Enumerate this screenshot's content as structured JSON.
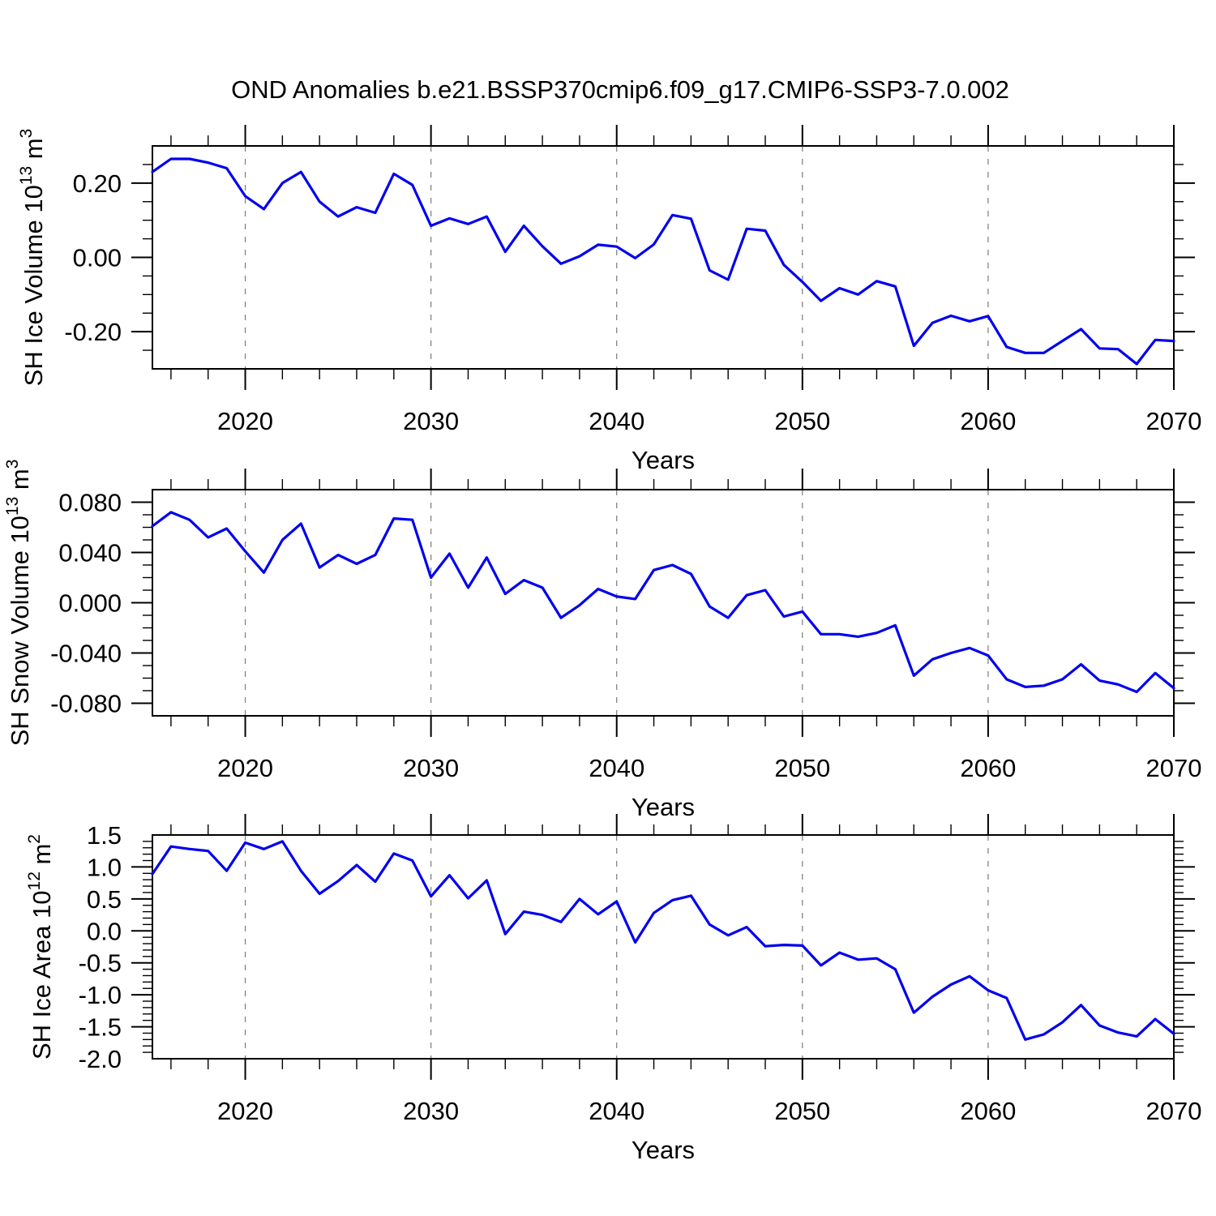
{
  "title": "OND Anomalies b.e21.BSSP370cmip6.f09_g17.CMIP6-SSP3-7.0.002",
  "colors": {
    "line": "#0000ee",
    "grid": "#7a7a7a",
    "axis": "#000000",
    "text": "#000000"
  },
  "chart_data": [
    {
      "type": "line",
      "ylabel": "SH Ice Volume 10^13 m^3",
      "xlabel": "Years",
      "xlim": [
        2015,
        2070
      ],
      "ylim": [
        -0.3,
        0.3
      ],
      "x_major_ticks": [
        2020,
        2030,
        2040,
        2050,
        2060,
        2070
      ],
      "x_major_tick_labels": [
        "2020",
        "2030",
        "2040",
        "2050",
        "2060",
        "2070"
      ],
      "x_minor_step": 2,
      "y_major_tick_labels": [
        "0.20",
        "0.00",
        "-0.20"
      ],
      "y_minor_step": 0.05,
      "grid_x": [
        2020,
        2030,
        2040,
        2050,
        2060
      ],
      "x": [
        2015,
        2016,
        2017,
        2018,
        2019,
        2020,
        2021,
        2022,
        2023,
        2024,
        2025,
        2026,
        2027,
        2028,
        2029,
        2030,
        2031,
        2032,
        2033,
        2034,
        2035,
        2036,
        2037,
        2038,
        2039,
        2040,
        2041,
        2042,
        2043,
        2044,
        2045,
        2046,
        2047,
        2048,
        2049,
        2050,
        2051,
        2052,
        2053,
        2054,
        2055,
        2056,
        2057,
        2058,
        2059,
        2060,
        2061,
        2062,
        2063,
        2064,
        2065,
        2066,
        2067,
        2068,
        2069,
        2070
      ],
      "y": [
        0.23,
        0.265,
        0.265,
        0.255,
        0.24,
        0.165,
        0.13,
        0.2,
        0.23,
        0.15,
        0.11,
        0.135,
        0.12,
        0.225,
        0.195,
        0.085,
        0.105,
        0.09,
        0.11,
        0.015,
        0.085,
        0.03,
        -0.017,
        0.003,
        0.034,
        0.029,
        -0.002,
        0.035,
        0.114,
        0.104,
        -0.035,
        -0.06,
        0.077,
        0.072,
        -0.02,
        -0.066,
        -0.117,
        -0.083,
        -0.1,
        -0.064,
        -0.078,
        -0.238,
        -0.176,
        -0.157,
        -0.172,
        -0.158,
        -0.241,
        -0.257,
        -0.257,
        -0.225,
        -0.193,
        -0.245,
        -0.247,
        -0.287,
        -0.222,
        -0.225
      ]
    },
    {
      "type": "line",
      "ylabel": "SH Snow Volume 10^13 m^3",
      "xlabel": "Years",
      "xlim": [
        2015,
        2070
      ],
      "ylim": [
        -0.09,
        0.09
      ],
      "x_major_ticks": [
        2020,
        2030,
        2040,
        2050,
        2060,
        2070
      ],
      "x_major_tick_labels": [
        "2020",
        "2030",
        "2040",
        "2050",
        "2060",
        "2070"
      ],
      "x_minor_step": 2,
      "y_major_tick_labels": [
        "0.080",
        "0.040",
        "0.000",
        "-0.040",
        "-0.080"
      ],
      "y_minor_step": 0.01,
      "grid_x": [
        2020,
        2030,
        2040,
        2050,
        2060
      ],
      "x": [
        2015,
        2016,
        2017,
        2018,
        2019,
        2020,
        2021,
        2022,
        2023,
        2024,
        2025,
        2026,
        2027,
        2028,
        2029,
        2030,
        2031,
        2032,
        2033,
        2034,
        2035,
        2036,
        2037,
        2038,
        2039,
        2040,
        2041,
        2042,
        2043,
        2044,
        2045,
        2046,
        2047,
        2048,
        2049,
        2050,
        2051,
        2052,
        2053,
        2054,
        2055,
        2056,
        2057,
        2058,
        2059,
        2060,
        2061,
        2062,
        2063,
        2064,
        2065,
        2066,
        2067,
        2068,
        2069,
        2070
      ],
      "y": [
        0.061,
        0.072,
        0.066,
        0.052,
        0.059,
        0.041,
        0.024,
        0.05,
        0.063,
        0.028,
        0.038,
        0.031,
        0.038,
        0.067,
        0.066,
        0.02,
        0.039,
        0.012,
        0.036,
        0.007,
        0.018,
        0.012,
        -0.012,
        -0.002,
        0.011,
        0.005,
        0.003,
        0.026,
        0.03,
        0.023,
        -0.003,
        -0.012,
        0.006,
        0.01,
        -0.011,
        -0.007,
        -0.025,
        -0.025,
        -0.027,
        -0.024,
        -0.018,
        -0.058,
        -0.045,
        -0.04,
        -0.036,
        -0.042,
        -0.061,
        -0.067,
        -0.066,
        -0.061,
        -0.049,
        -0.062,
        -0.065,
        -0.071,
        -0.056,
        -0.068
      ]
    },
    {
      "type": "line",
      "ylabel": "SH Ice Area 10^12 m^2",
      "xlabel": "Years",
      "xlim": [
        2015,
        2070
      ],
      "ylim": [
        -2.0,
        1.5
      ],
      "x_major_ticks": [
        2020,
        2030,
        2040,
        2050,
        2060,
        2070
      ],
      "x_major_tick_labels": [
        "2020",
        "2030",
        "2040",
        "2050",
        "2060",
        "2070"
      ],
      "x_minor_step": 2,
      "y_major_tick_labels": [
        "1.5",
        "1.0",
        "0.5",
        "0.0",
        "-0.5",
        "-1.0",
        "-1.5",
        "-2.0"
      ],
      "y_minor_step": 0.1,
      "grid_x": [
        2020,
        2030,
        2040,
        2050,
        2060
      ],
      "x": [
        2015,
        2016,
        2017,
        2018,
        2019,
        2020,
        2021,
        2022,
        2023,
        2024,
        2025,
        2026,
        2027,
        2028,
        2029,
        2030,
        2031,
        2032,
        2033,
        2034,
        2035,
        2036,
        2037,
        2038,
        2039,
        2040,
        2041,
        2042,
        2043,
        2044,
        2045,
        2046,
        2047,
        2048,
        2049,
        2050,
        2051,
        2052,
        2053,
        2054,
        2055,
        2056,
        2057,
        2058,
        2059,
        2060,
        2061,
        2062,
        2063,
        2064,
        2065,
        2066,
        2067,
        2068,
        2069,
        2070
      ],
      "y": [
        0.89,
        1.32,
        1.28,
        1.25,
        0.94,
        1.38,
        1.28,
        1.4,
        0.94,
        0.58,
        0.78,
        1.03,
        0.77,
        1.21,
        1.1,
        0.54,
        0.87,
        0.51,
        0.79,
        -0.05,
        0.3,
        0.25,
        0.14,
        0.5,
        0.26,
        0.46,
        -0.18,
        0.28,
        0.48,
        0.55,
        0.1,
        -0.07,
        0.06,
        -0.24,
        -0.22,
        -0.23,
        -0.54,
        -0.34,
        -0.45,
        -0.43,
        -0.6,
        -1.28,
        -1.03,
        -0.84,
        -0.71,
        -0.93,
        -1.05,
        -1.7,
        -1.62,
        -1.43,
        -1.16,
        -1.48,
        -1.59,
        -1.65,
        -1.38,
        -1.61
      ]
    }
  ]
}
